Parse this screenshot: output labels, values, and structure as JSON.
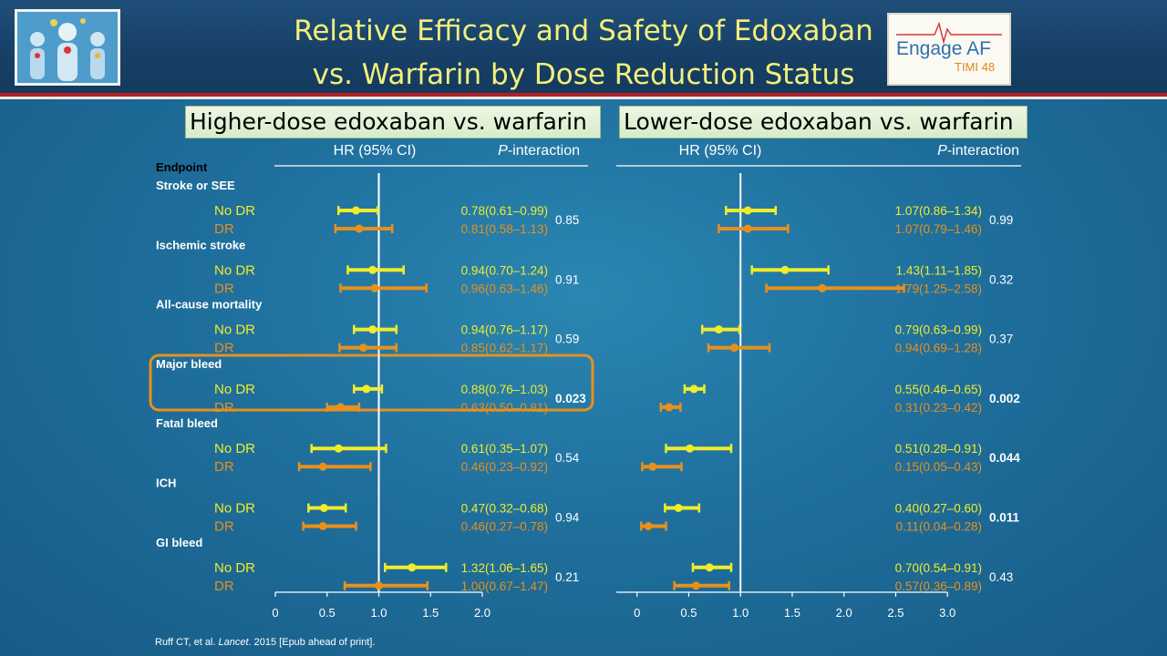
{
  "header": {
    "title_line1": "Relative Efficacy and Safety of Edoxaban",
    "title_line2": "vs. Warfarin by Dose Reduction Status",
    "logo_right": {
      "main": "Engage AF",
      "sub": "TIMI 48"
    }
  },
  "colors": {
    "no_dr": "#f0ec2a",
    "dr": "#e8901c",
    "title": "#f3ef7a",
    "endpoint_header": "#e8901c"
  },
  "endpoint_header": "Endpoint",
  "column_headers": {
    "hr": "HR (95% CI)",
    "p_interaction": "P-interaction",
    "p_italic": "P"
  },
  "footnote": {
    "authors": "Ruff CT, et al. ",
    "journal": "Lancet",
    "rest": ". 2015 [Epub ahead of print]."
  },
  "chart_data": [
    {
      "type": "forest",
      "title": "Higher-dose edoxaban vs. warfarin",
      "xlim": [
        0,
        2.0
      ],
      "x_ticks": [
        0,
        0.5,
        1.0,
        1.5,
        2.0
      ],
      "x_tick_labels": [
        "0",
        "0.5",
        "1.0",
        "1.5",
        "2.0"
      ],
      "reference_line": 1.0,
      "groups": [
        {
          "endpoint": "Stroke or SEE",
          "p_interaction": "0.85",
          "bold": false,
          "rows": [
            {
              "label": "No DR",
              "hr": 0.78,
              "lo": 0.61,
              "hi": 0.99,
              "ci_text": "0.78(0.61–0.99)"
            },
            {
              "label": "DR",
              "hr": 0.81,
              "lo": 0.58,
              "hi": 1.13,
              "ci_text": "0.81(0.58–1.13)"
            }
          ]
        },
        {
          "endpoint": "Ischemic stroke",
          "p_interaction": "0.91",
          "bold": false,
          "rows": [
            {
              "label": "No DR",
              "hr": 0.94,
              "lo": 0.7,
              "hi": 1.24,
              "ci_text": "0.94(0.70–1.24)"
            },
            {
              "label": "DR",
              "hr": 0.96,
              "lo": 0.63,
              "hi": 1.46,
              "ci_text": "0.96(0.63–1.46)"
            }
          ]
        },
        {
          "endpoint": "All-cause mortality",
          "p_interaction": "0.59",
          "bold": false,
          "rows": [
            {
              "label": "No DR",
              "hr": 0.94,
              "lo": 0.76,
              "hi": 1.17,
              "ci_text": "0.94(0.76–1.17)"
            },
            {
              "label": "DR",
              "hr": 0.85,
              "lo": 0.62,
              "hi": 1.17,
              "ci_text": "0.85(0.62–1.17)"
            }
          ]
        },
        {
          "endpoint": "Major bleed",
          "p_interaction": "0.023",
          "bold": true,
          "rows": [
            {
              "label": "No DR",
              "hr": 0.88,
              "lo": 0.76,
              "hi": 1.03,
              "ci_text": "0.88(0.76–1.03)"
            },
            {
              "label": "DR",
              "hr": 0.63,
              "lo": 0.5,
              "hi": 0.81,
              "ci_text": "0.63(0.50–0.81)"
            }
          ]
        },
        {
          "endpoint": "Fatal bleed",
          "p_interaction": "0.54",
          "bold": false,
          "rows": [
            {
              "label": "No DR",
              "hr": 0.61,
              "lo": 0.35,
              "hi": 1.07,
              "ci_text": "0.61(0.35–1.07)"
            },
            {
              "label": "DR",
              "hr": 0.46,
              "lo": 0.23,
              "hi": 0.92,
              "ci_text": "0.46(0.23–0.92)"
            }
          ]
        },
        {
          "endpoint": "ICH",
          "p_interaction": "0.94",
          "bold": false,
          "rows": [
            {
              "label": "No DR",
              "hr": 0.47,
              "lo": 0.32,
              "hi": 0.68,
              "ci_text": "0.47(0.32–0.68)"
            },
            {
              "label": "DR",
              "hr": 0.46,
              "lo": 0.27,
              "hi": 0.78,
              "ci_text": "0.46(0.27–0.78)"
            }
          ]
        },
        {
          "endpoint": "GI bleed",
          "p_interaction": "0.21",
          "bold": false,
          "rows": [
            {
              "label": "No DR",
              "hr": 1.32,
              "lo": 1.06,
              "hi": 1.65,
              "ci_text": "1.32(1.06–1.65)"
            },
            {
              "label": "DR",
              "hr": 1.0,
              "lo": 0.67,
              "hi": 1.47,
              "ci_text": "1.00(0.67–1.47)"
            }
          ]
        }
      ]
    },
    {
      "type": "forest",
      "title": "Lower-dose edoxaban vs. warfarin",
      "xlim": [
        -0.1,
        3.0
      ],
      "x_ticks": [
        0,
        0.5,
        1.0,
        1.5,
        2.0,
        2.5,
        3.0
      ],
      "x_tick_labels": [
        "0",
        "0.5",
        "1.0",
        "1.5",
        "2.0",
        "2.5",
        "3.0"
      ],
      "reference_line": 1.0,
      "groups": [
        {
          "endpoint": "Stroke or SEE",
          "p_interaction": "0.99",
          "bold": false,
          "rows": [
            {
              "label": "No DR",
              "hr": 1.07,
              "lo": 0.86,
              "hi": 1.34,
              "ci_text": "1.07(0.86–1.34)"
            },
            {
              "label": "DR",
              "hr": 1.07,
              "lo": 0.79,
              "hi": 1.46,
              "ci_text": "1.07(0.79–1.46)"
            }
          ]
        },
        {
          "endpoint": "Ischemic stroke",
          "p_interaction": "0.32",
          "bold": false,
          "rows": [
            {
              "label": "No DR",
              "hr": 1.43,
              "lo": 1.11,
              "hi": 1.85,
              "ci_text": "1.43(1.11–1.85)"
            },
            {
              "label": "DR",
              "hr": 1.79,
              "lo": 1.25,
              "hi": 2.58,
              "ci_text": "1.79(1.25–2.58)"
            }
          ]
        },
        {
          "endpoint": "All-cause mortality",
          "p_interaction": "0.37",
          "bold": false,
          "rows": [
            {
              "label": "No DR",
              "hr": 0.79,
              "lo": 0.63,
              "hi": 0.99,
              "ci_text": "0.79(0.63–0.99)"
            },
            {
              "label": "DR",
              "hr": 0.94,
              "lo": 0.69,
              "hi": 1.28,
              "ci_text": "0.94(0.69–1.28)"
            }
          ]
        },
        {
          "endpoint": "Major bleed",
          "p_interaction": "0.002",
          "bold": true,
          "rows": [
            {
              "label": "No DR",
              "hr": 0.55,
              "lo": 0.46,
              "hi": 0.65,
              "ci_text": "0.55(0.46–0.65)"
            },
            {
              "label": "DR",
              "hr": 0.31,
              "lo": 0.23,
              "hi": 0.42,
              "ci_text": "0.31(0.23–0.42)"
            }
          ]
        },
        {
          "endpoint": "Fatal bleed",
          "p_interaction": "0.044",
          "bold": true,
          "rows": [
            {
              "label": "No DR",
              "hr": 0.51,
              "lo": 0.28,
              "hi": 0.91,
              "ci_text": "0.51(0.28–0.91)"
            },
            {
              "label": "DR",
              "hr": 0.15,
              "lo": 0.05,
              "hi": 0.43,
              "ci_text": "0.15(0.05–0.43)"
            }
          ]
        },
        {
          "endpoint": "ICH",
          "p_interaction": "0.011",
          "bold": true,
          "rows": [
            {
              "label": "No DR",
              "hr": 0.4,
              "lo": 0.27,
              "hi": 0.6,
              "ci_text": "0.40(0.27–0.60)"
            },
            {
              "label": "DR",
              "hr": 0.11,
              "lo": 0.04,
              "hi": 0.28,
              "ci_text": "0.11(0.04–0.28)"
            }
          ]
        },
        {
          "endpoint": "GI bleed",
          "p_interaction": "0.43",
          "bold": false,
          "rows": [
            {
              "label": "No DR",
              "hr": 0.7,
              "lo": 0.54,
              "hi": 0.91,
              "ci_text": "0.70(0.54–0.91)"
            },
            {
              "label": "DR",
              "hr": 0.57,
              "lo": 0.36,
              "hi": 0.89,
              "ci_text": "0.57(0.36–0.89)"
            }
          ]
        }
      ]
    }
  ]
}
